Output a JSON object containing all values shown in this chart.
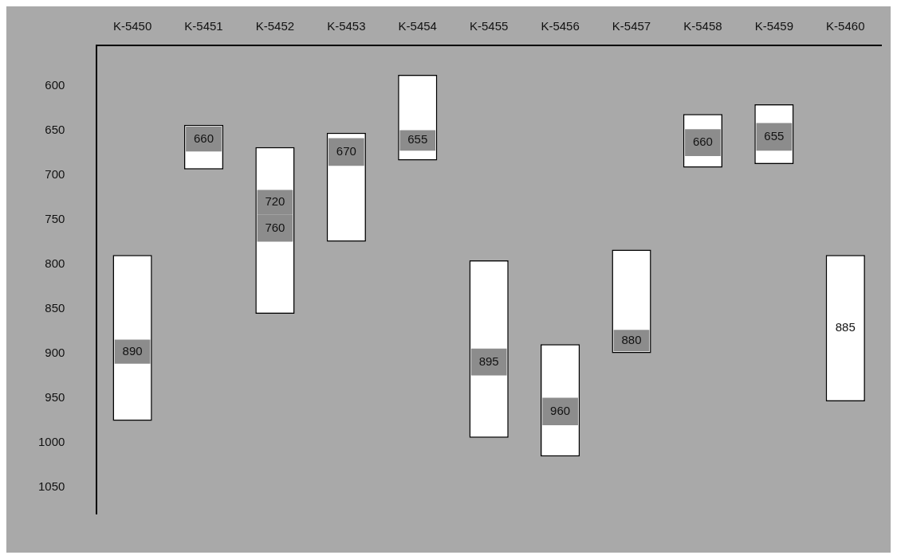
{
  "chart_data": {
    "type": "bar",
    "categories": [
      "K-5450",
      "K-5451",
      "K-5452",
      "K-5453",
      "K-5454",
      "K-5455",
      "K-5456",
      "K-5457",
      "K-5458",
      "K-5459",
      "K-5460"
    ],
    "ylim": [
      1080,
      555
    ],
    "yticks": [
      600,
      650,
      700,
      750,
      800,
      850,
      900,
      950,
      1000,
      1050
    ],
    "series": [
      {
        "color": "#ffffff",
        "base": [
          790,
          644,
          669,
          653,
          588,
          796,
          890,
          784,
          632,
          621,
          790
        ],
        "values": [
          186,
          50,
          187,
          122,
          96,
          199,
          126,
          116,
          60,
          67,
          164
        ]
      },
      {
        "color": "#8c8c8c",
        "base": [
          885,
          646,
          717,
          659,
          650,
          895,
          950,
          874,
          649,
          642,
          null
        ],
        "values": [
          27,
          28,
          28,
          31,
          23,
          30,
          31,
          24,
          30,
          31,
          null
        ]
      },
      {
        "color": "#8c8c8c",
        "base": [
          null,
          null,
          745,
          null,
          null,
          null,
          null,
          null,
          null,
          null,
          null
        ],
        "values": [
          null,
          null,
          30,
          null,
          null,
          null,
          null,
          null,
          null,
          null,
          null
        ]
      }
    ],
    "annotations": [
      "890",
      "660",
      "720",
      "760",
      "670",
      "655",
      "895",
      "960",
      "880",
      "660",
      "655",
      "885"
    ]
  }
}
